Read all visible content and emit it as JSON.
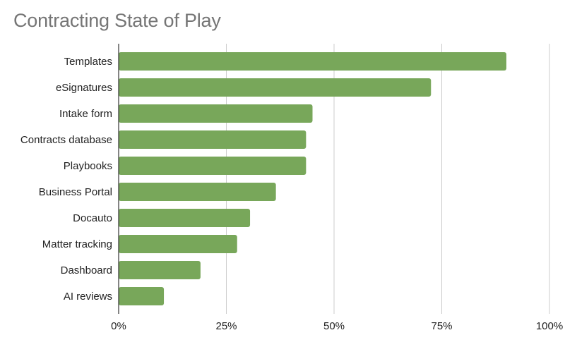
{
  "chart_data": {
    "type": "bar",
    "orientation": "horizontal",
    "title": "Contracting State of Play",
    "xlabel": "",
    "ylabel": "",
    "categories": [
      "Templates",
      "eSignatures",
      "Intake form",
      "Contracts database",
      "Playbooks",
      "Business Portal",
      "Docauto",
      "Matter tracking",
      "Dashboard",
      "AI reviews"
    ],
    "values": [
      0.9,
      0.725,
      0.45,
      0.435,
      0.435,
      0.365,
      0.305,
      0.275,
      0.19,
      0.105
    ],
    "xlim": [
      0,
      1
    ],
    "xticks": [
      0,
      0.25,
      0.5,
      0.75,
      1
    ],
    "xtick_labels": [
      "0%",
      "25%",
      "50%",
      "75%",
      "100%"
    ],
    "grid": "vertical",
    "legend": "none",
    "bar_color": "#78a75a"
  }
}
